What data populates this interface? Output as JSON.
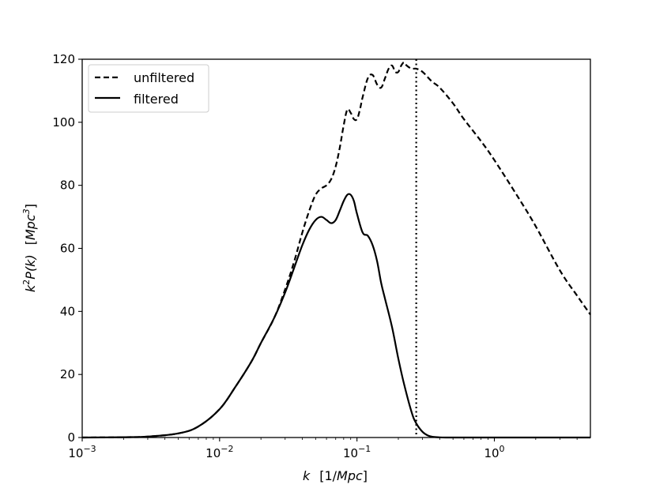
{
  "chart_data": {
    "type": "line",
    "x_scale": "log",
    "xlim": [
      0.001,
      5
    ],
    "ylim": [
      0,
      120
    ],
    "x_ticks": [
      {
        "value": 0.001,
        "base": "10",
        "exp": "−3"
      },
      {
        "value": 0.01,
        "base": "10",
        "exp": "−2"
      },
      {
        "value": 0.1,
        "base": "10",
        "exp": "−1"
      },
      {
        "value": 1,
        "base": "10",
        "exp": "0"
      }
    ],
    "y_ticks": [
      0,
      20,
      40,
      60,
      80,
      100,
      120
    ],
    "xlabel": {
      "var": "k",
      "unit": "[1/",
      "unit_italic": "Mpc",
      "unit_end": "]"
    },
    "ylabel": {
      "part1": "k",
      "sup1": "2",
      "part2": "P(k)",
      "unit_open": "[",
      "unit_italic": "Mpc",
      "sup2": "3",
      "unit_close": "]"
    },
    "legend_position": "top-left",
    "vertical_line": {
      "x": 0.27,
      "style": "dotted"
    },
    "series": [
      {
        "name": "unfiltered",
        "style": "dashed",
        "x": [
          0.001,
          0.002,
          0.003,
          0.005,
          0.007,
          0.01,
          0.013,
          0.017,
          0.02,
          0.025,
          0.03,
          0.035,
          0.04,
          0.045,
          0.05,
          0.055,
          0.06,
          0.065,
          0.07,
          0.075,
          0.08,
          0.085,
          0.09,
          0.095,
          0.1,
          0.105,
          0.11,
          0.12,
          0.13,
          0.14,
          0.15,
          0.16,
          0.17,
          0.18,
          0.19,
          0.2,
          0.21,
          0.22,
          0.23,
          0.25,
          0.27,
          0.3,
          0.35,
          0.4,
          0.5,
          0.6,
          0.8,
          1.0,
          1.5,
          2.0,
          3.0,
          4.0,
          5.0
        ],
        "values": [
          0,
          0.1,
          0.3,
          1.3,
          3.5,
          9,
          16,
          24,
          30,
          38,
          47,
          56,
          65,
          72,
          77,
          79,
          80,
          82,
          86,
          92,
          99,
          104,
          103,
          101,
          101,
          104,
          108,
          114,
          115,
          112,
          111,
          114,
          117,
          118,
          116,
          116,
          118,
          119,
          118,
          117,
          117,
          116,
          113,
          111,
          106,
          101,
          94,
          88,
          76,
          67,
          53,
          45,
          39
        ]
      },
      {
        "name": "filtered",
        "style": "solid",
        "x": [
          0.001,
          0.002,
          0.003,
          0.005,
          0.007,
          0.01,
          0.013,
          0.017,
          0.02,
          0.025,
          0.03,
          0.035,
          0.04,
          0.045,
          0.05,
          0.055,
          0.06,
          0.065,
          0.07,
          0.075,
          0.08,
          0.085,
          0.09,
          0.095,
          0.1,
          0.11,
          0.12,
          0.13,
          0.14,
          0.15,
          0.16,
          0.18,
          0.2,
          0.22,
          0.25,
          0.27,
          0.3,
          0.33,
          0.36,
          0.4,
          0.45,
          0.5,
          1.0,
          5.0
        ],
        "values": [
          0,
          0.1,
          0.3,
          1.3,
          3.5,
          9,
          16,
          24,
          30,
          38,
          46,
          54,
          61,
          66,
          69,
          70,
          69,
          68,
          69,
          72,
          75,
          77,
          77,
          75,
          71,
          65,
          64,
          61,
          56,
          49,
          44,
          35,
          25,
          17,
          8,
          4.5,
          1.8,
          0.6,
          0.2,
          0.05,
          0,
          0,
          0,
          0
        ]
      }
    ]
  }
}
